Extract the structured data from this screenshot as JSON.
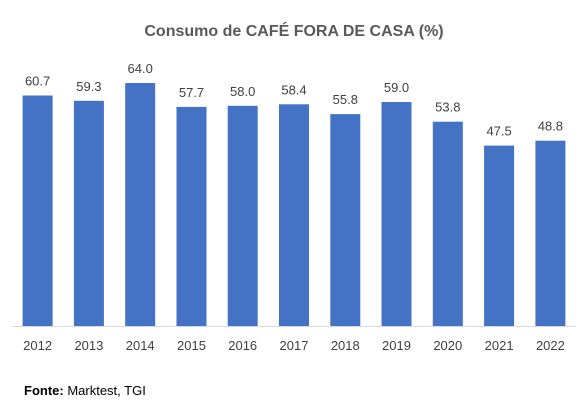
{
  "chart_data": {
    "type": "bar",
    "title": "Consumo de CAFÉ FORA DE CASA (%)",
    "xlabel": "",
    "ylabel": "",
    "categories": [
      "2012",
      "2013",
      "2014",
      "2015",
      "2016",
      "2017",
      "2018",
      "2019",
      "2020",
      "2021",
      "2022"
    ],
    "values": [
      60.7,
      59.3,
      64.0,
      57.7,
      58.0,
      58.4,
      55.8,
      59.0,
      53.8,
      47.5,
      48.8
    ],
    "value_labels": [
      "60.7",
      "59.3",
      "64.0",
      "57.7",
      "58.0",
      "58.4",
      "55.8",
      "59.0",
      "53.8",
      "47.5",
      "48.8"
    ],
    "ylim": [
      0,
      64
    ],
    "grid": false,
    "legend": "none",
    "bar_color": "#4472C4",
    "axis_color": "#D9D9D9"
  },
  "source": {
    "label": "Fonte:",
    "text": " Marktest, TGI"
  }
}
